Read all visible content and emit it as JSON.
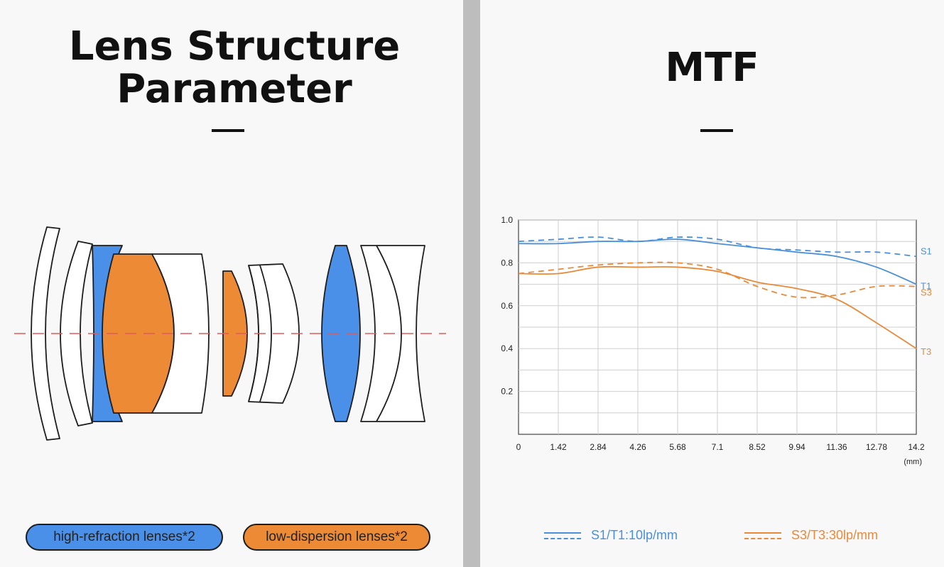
{
  "left_panel": {
    "title_line1": "Lens Structure",
    "title_line2": "Parameter",
    "legend": [
      {
        "label": "high-refraction lenses*2",
        "color": "#4a8fe8"
      },
      {
        "label": "low-dispersion lenses*2",
        "color": "#ec8a35"
      }
    ]
  },
  "right_panel": {
    "title": "MTF",
    "legend": [
      {
        "label": "S1/T1:10lp/mm",
        "color": "#4a90d9"
      },
      {
        "label": "S3/T3:30lp/mm",
        "color": "#e88a3a"
      }
    ]
  },
  "chart_data": {
    "type": "line",
    "title": "MTF",
    "xlabel": "(mm)",
    "ylabel": "",
    "xlim": [
      0,
      14.2
    ],
    "ylim": [
      0,
      1.0
    ],
    "x_ticks": [
      "0",
      "1.42",
      "2.84",
      "4.26",
      "5.68",
      "7.1",
      "8.52",
      "9.94",
      "11.36",
      "12.78",
      "14.2"
    ],
    "y_ticks": [
      "0.2",
      "0.4",
      "0.6",
      "0.8",
      "1.0"
    ],
    "grid": true,
    "series": [
      {
        "name": "S1",
        "color": "#4a90d9",
        "dash": true,
        "x": [
          0,
          1.42,
          2.84,
          4.26,
          5.68,
          7.1,
          8.52,
          9.94,
          11.36,
          12.78,
          14.2
        ],
        "y": [
          0.9,
          0.91,
          0.92,
          0.9,
          0.92,
          0.91,
          0.87,
          0.86,
          0.85,
          0.85,
          0.83
        ]
      },
      {
        "name": "T1",
        "color": "#4a90d9",
        "dash": false,
        "x": [
          0,
          1.42,
          2.84,
          4.26,
          5.68,
          7.1,
          8.52,
          9.94,
          11.36,
          12.78,
          14.2
        ],
        "y": [
          0.89,
          0.89,
          0.9,
          0.9,
          0.91,
          0.89,
          0.87,
          0.85,
          0.83,
          0.78,
          0.7
        ]
      },
      {
        "name": "S3",
        "color": "#e88a3a",
        "dash": true,
        "x": [
          0,
          1.42,
          2.84,
          4.26,
          5.68,
          7.1,
          8.52,
          9.94,
          11.36,
          12.78,
          14.2
        ],
        "y": [
          0.75,
          0.77,
          0.79,
          0.8,
          0.8,
          0.77,
          0.69,
          0.64,
          0.65,
          0.69,
          0.69
        ]
      },
      {
        "name": "T3",
        "color": "#e88a3a",
        "dash": false,
        "x": [
          0,
          1.42,
          2.84,
          4.26,
          5.68,
          7.1,
          8.52,
          9.94,
          11.36,
          12.78,
          14.2
        ],
        "y": [
          0.75,
          0.75,
          0.78,
          0.78,
          0.78,
          0.76,
          0.71,
          0.68,
          0.63,
          0.52,
          0.4
        ]
      }
    ]
  }
}
